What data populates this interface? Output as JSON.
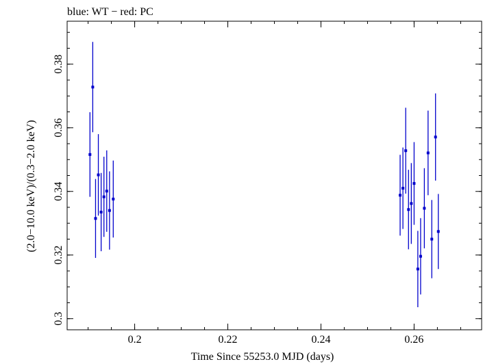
{
  "colors": {
    "wt": "#0000cc",
    "axis": "#000000",
    "background": "#ffffff"
  },
  "chart_data": {
    "type": "scatter",
    "title": "blue: WT − red: PC",
    "xlabel": "Time Since 55253.0 MJD (days)",
    "ylabel": "(2.0−10.0 keV)/(0.3−2.0 keV)",
    "xlim": [
      0.1855,
      0.2745
    ],
    "ylim": [
      0.2965,
      0.3935
    ],
    "x_ticks": [
      {
        "value": 0.2,
        "label": "0.2"
      },
      {
        "value": 0.22,
        "label": "0.22"
      },
      {
        "value": 0.24,
        "label": "0.24"
      },
      {
        "value": 0.26,
        "label": "0.26"
      }
    ],
    "y_ticks": [
      {
        "value": 0.3,
        "label": "0.3"
      },
      {
        "value": 0.32,
        "label": "0.32"
      },
      {
        "value": 0.34,
        "label": "0.34"
      },
      {
        "value": 0.36,
        "label": "0.36"
      },
      {
        "value": 0.38,
        "label": "0.38"
      }
    ],
    "x_minor_step": 0.005,
    "y_minor_step": 0.005,
    "grid": false,
    "series": [
      {
        "color": "#0000cc",
        "points": [
          {
            "x": 0.1904,
            "y": 0.3516,
            "err": 0.0133
          },
          {
            "x": 0.191,
            "y": 0.3728,
            "err": 0.0142
          },
          {
            "x": 0.1916,
            "y": 0.3315,
            "err": 0.0124
          },
          {
            "x": 0.1922,
            "y": 0.3452,
            "err": 0.0128
          },
          {
            "x": 0.1928,
            "y": 0.3335,
            "err": 0.0123
          },
          {
            "x": 0.1934,
            "y": 0.3383,
            "err": 0.0126
          },
          {
            "x": 0.194,
            "y": 0.3401,
            "err": 0.0128
          },
          {
            "x": 0.1946,
            "y": 0.334,
            "err": 0.0123
          },
          {
            "x": 0.1954,
            "y": 0.3376,
            "err": 0.0121
          },
          {
            "x": 0.257,
            "y": 0.3388,
            "err": 0.0127
          },
          {
            "x": 0.2576,
            "y": 0.341,
            "err": 0.0128
          },
          {
            "x": 0.2582,
            "y": 0.3528,
            "err": 0.0135
          },
          {
            "x": 0.2588,
            "y": 0.3343,
            "err": 0.0125
          },
          {
            "x": 0.2594,
            "y": 0.3362,
            "err": 0.0127
          },
          {
            "x": 0.26,
            "y": 0.3425,
            "err": 0.013
          },
          {
            "x": 0.2608,
            "y": 0.3156,
            "err": 0.012
          },
          {
            "x": 0.2614,
            "y": 0.3196,
            "err": 0.012
          },
          {
            "x": 0.2622,
            "y": 0.3347,
            "err": 0.0126
          },
          {
            "x": 0.263,
            "y": 0.3521,
            "err": 0.0133
          },
          {
            "x": 0.2638,
            "y": 0.325,
            "err": 0.0123
          },
          {
            "x": 0.2646,
            "y": 0.3571,
            "err": 0.0137
          },
          {
            "x": 0.2652,
            "y": 0.3274,
            "err": 0.0118
          }
        ]
      }
    ]
  }
}
